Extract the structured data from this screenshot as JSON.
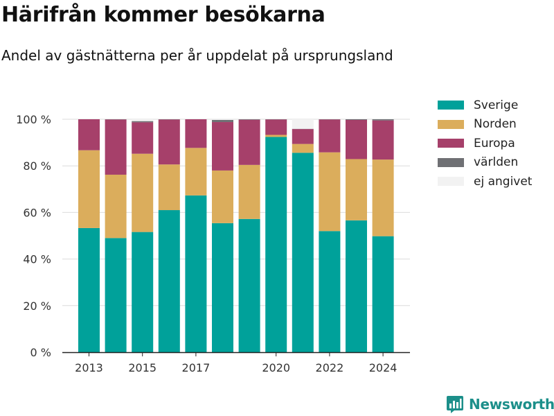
{
  "header": {
    "title": "Härifrån kommer besökarna",
    "subtitle": "Andel av gästnätterna per år uppdelat på ursprungsland"
  },
  "brand": {
    "name": "Newsworthy",
    "icon": "bar-chart-logo-icon",
    "color": "#1c8f8a"
  },
  "chart_data": {
    "type": "bar",
    "stacked": true,
    "x": [
      2013,
      2014,
      2015,
      2016,
      2017,
      2018,
      2019,
      2020,
      2021,
      2022,
      2023,
      2024
    ],
    "x_tick_labels": [
      "2013",
      "2015",
      "2017",
      "2020",
      "2022",
      "2024"
    ],
    "y_tick_labels": [
      "0 %",
      "20 %",
      "40 %",
      "60 %",
      "80 %",
      "100 %"
    ],
    "ylim": [
      0,
      100
    ],
    "grid": true,
    "legend_position": "right",
    "series": [
      {
        "name": "Sverige",
        "color": "#00a19a",
        "values": [
          53.3,
          49.0,
          51.6,
          61.0,
          67.3,
          55.4,
          57.2,
          92.4,
          85.6,
          52.0,
          56.6,
          49.8
        ]
      },
      {
        "name": "Norden",
        "color": "#dbad5c",
        "values": [
          33.4,
          27.2,
          33.6,
          19.6,
          20.4,
          22.6,
          23.2,
          0.9,
          3.8,
          33.8,
          26.3,
          32.9
        ]
      },
      {
        "name": "Europa",
        "color": "#a6406a",
        "values": [
          13.3,
          23.7,
          13.5,
          19.3,
          12.3,
          20.8,
          19.4,
          6.6,
          6.4,
          14.1,
          16.8,
          16.8
        ]
      },
      {
        "name": "världen",
        "color": "#6f7074",
        "values": [
          0.0,
          0.1,
          0.5,
          0.1,
          0.0,
          0.9,
          0.2,
          0.1,
          0.1,
          0.1,
          0.3,
          0.5
        ]
      },
      {
        "name": "ej angivet",
        "color": "#f2f2f2",
        "values": [
          0.0,
          0.0,
          0.8,
          0.0,
          0.0,
          0.3,
          0.0,
          0.0,
          4.1,
          0.0,
          0.0,
          0.0
        ]
      }
    ]
  }
}
